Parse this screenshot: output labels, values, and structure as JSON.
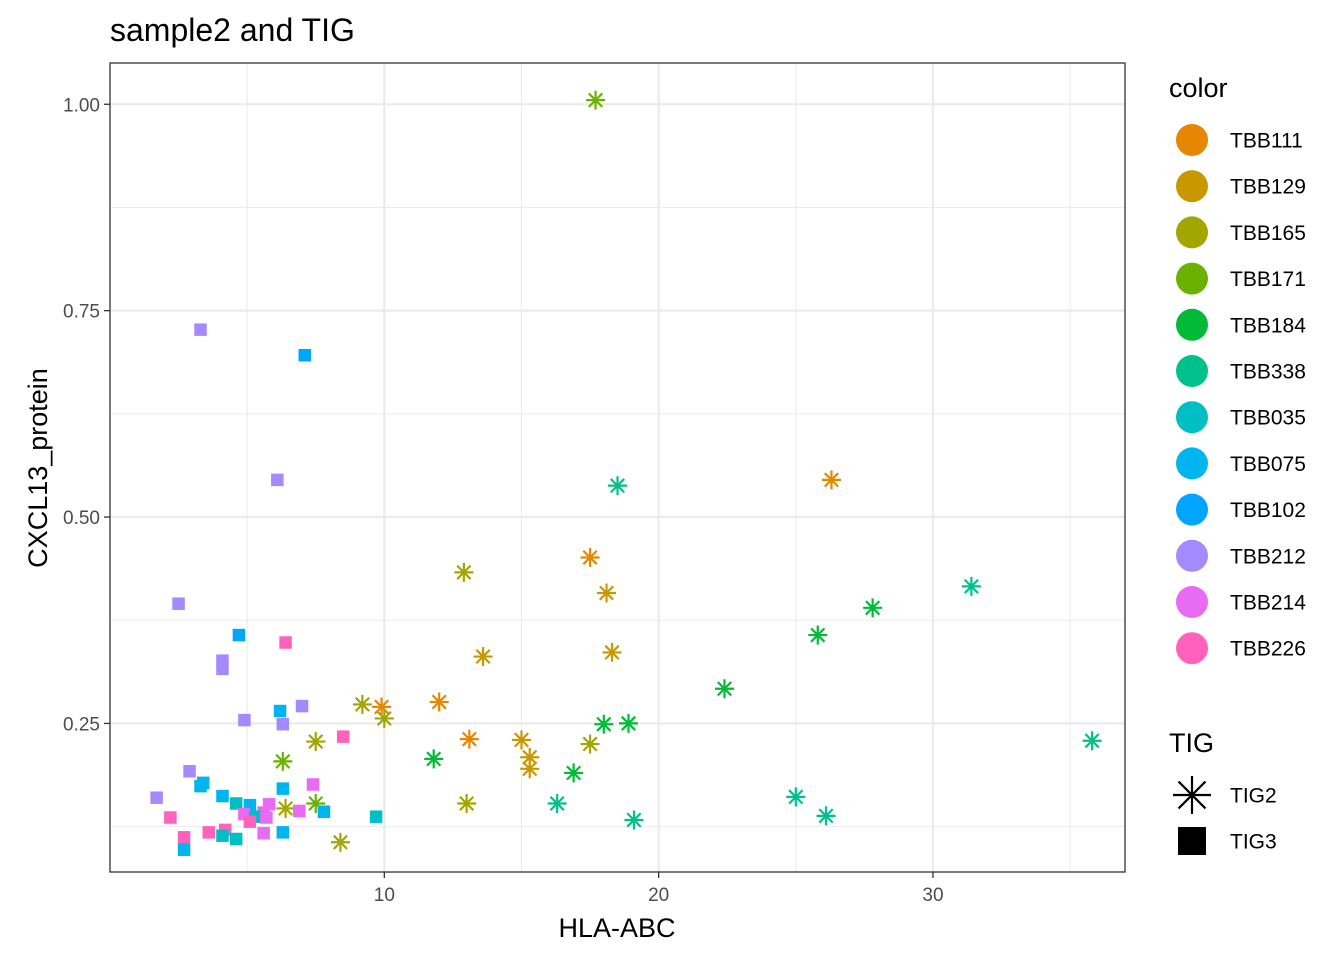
{
  "chart_data": {
    "type": "scatter",
    "title": "sample2 and TIG",
    "xlabel": "HLA-ABC",
    "ylabel": "CXCL13_protein",
    "xlim": [
      0,
      37
    ],
    "ylim": [
      0.07,
      1.05
    ],
    "x_ticks": [
      10,
      20,
      30
    ],
    "y_ticks": [
      0.25,
      0.5,
      0.75,
      1.0
    ],
    "x_tick_labels": [
      "10",
      "20",
      "30"
    ],
    "y_tick_labels": [
      "0.25",
      "0.50",
      "0.75",
      "1.00"
    ],
    "grid": true,
    "legend_position": "right",
    "color_legend": {
      "title": "color",
      "entries": [
        {
          "label": "TBB111",
          "color": "#E58700"
        },
        {
          "label": "TBB129",
          "color": "#C99800"
        },
        {
          "label": "TBB165",
          "color": "#A3A500"
        },
        {
          "label": "TBB171",
          "color": "#6BB100"
        },
        {
          "label": "TBB184",
          "color": "#00BA38"
        },
        {
          "label": "TBB338",
          "color": "#00C08B"
        },
        {
          "label": "TBB035",
          "color": "#00BFC4"
        },
        {
          "label": "TBB075",
          "color": "#00B4F0"
        },
        {
          "label": "TBB102",
          "color": "#00A5FF"
        },
        {
          "label": "TBB212",
          "color": "#A58AFF"
        },
        {
          "label": "TBB214",
          "color": "#E76BF3"
        },
        {
          "label": "TBB226",
          "color": "#FF62BC"
        }
      ]
    },
    "shape_legend": {
      "title": "TIG",
      "entries": [
        {
          "label": "TIG2",
          "shape": "asterisk"
        },
        {
          "label": "TIG3",
          "shape": "square"
        }
      ]
    },
    "points": [
      {
        "x": 17.7,
        "y": 1.005,
        "group": "TBB171",
        "shape": "asterisk"
      },
      {
        "x": 26.3,
        "y": 0.545,
        "group": "TBB111",
        "shape": "asterisk"
      },
      {
        "x": 18.5,
        "y": 0.538,
        "group": "TBB338",
        "shape": "asterisk"
      },
      {
        "x": 17.5,
        "y": 0.451,
        "group": "TBB111",
        "shape": "asterisk"
      },
      {
        "x": 12.9,
        "y": 0.433,
        "group": "TBB165",
        "shape": "asterisk"
      },
      {
        "x": 31.4,
        "y": 0.416,
        "group": "TBB338",
        "shape": "asterisk"
      },
      {
        "x": 18.1,
        "y": 0.408,
        "group": "TBB129",
        "shape": "asterisk"
      },
      {
        "x": 27.8,
        "y": 0.39,
        "group": "TBB184",
        "shape": "asterisk"
      },
      {
        "x": 25.8,
        "y": 0.357,
        "group": "TBB184",
        "shape": "asterisk"
      },
      {
        "x": 18.3,
        "y": 0.336,
        "group": "TBB129",
        "shape": "asterisk"
      },
      {
        "x": 13.6,
        "y": 0.331,
        "group": "TBB129",
        "shape": "asterisk"
      },
      {
        "x": 22.4,
        "y": 0.292,
        "group": "TBB184",
        "shape": "asterisk"
      },
      {
        "x": 12.0,
        "y": 0.276,
        "group": "TBB111",
        "shape": "asterisk"
      },
      {
        "x": 9.2,
        "y": 0.273,
        "group": "TBB165",
        "shape": "asterisk"
      },
      {
        "x": 9.9,
        "y": 0.27,
        "group": "TBB111",
        "shape": "asterisk"
      },
      {
        "x": 10.0,
        "y": 0.256,
        "group": "TBB165",
        "shape": "asterisk"
      },
      {
        "x": 18.9,
        "y": 0.25,
        "group": "TBB184",
        "shape": "asterisk"
      },
      {
        "x": 18.0,
        "y": 0.249,
        "group": "TBB184",
        "shape": "asterisk"
      },
      {
        "x": 13.1,
        "y": 0.231,
        "group": "TBB111",
        "shape": "asterisk"
      },
      {
        "x": 15.0,
        "y": 0.23,
        "group": "TBB129",
        "shape": "asterisk"
      },
      {
        "x": 35.8,
        "y": 0.229,
        "group": "TBB338",
        "shape": "asterisk"
      },
      {
        "x": 7.5,
        "y": 0.228,
        "group": "TBB165",
        "shape": "asterisk"
      },
      {
        "x": 17.5,
        "y": 0.225,
        "group": "TBB165",
        "shape": "asterisk"
      },
      {
        "x": 15.3,
        "y": 0.209,
        "group": "TBB129",
        "shape": "asterisk"
      },
      {
        "x": 11.8,
        "y": 0.207,
        "group": "TBB184",
        "shape": "asterisk"
      },
      {
        "x": 6.3,
        "y": 0.204,
        "group": "TBB171",
        "shape": "asterisk"
      },
      {
        "x": 15.3,
        "y": 0.195,
        "group": "TBB129",
        "shape": "asterisk"
      },
      {
        "x": 16.9,
        "y": 0.19,
        "group": "TBB184",
        "shape": "asterisk"
      },
      {
        "x": 25.0,
        "y": 0.161,
        "group": "TBB338",
        "shape": "asterisk"
      },
      {
        "x": 16.3,
        "y": 0.153,
        "group": "TBB338",
        "shape": "asterisk"
      },
      {
        "x": 13.0,
        "y": 0.153,
        "group": "TBB165",
        "shape": "asterisk"
      },
      {
        "x": 7.5,
        "y": 0.153,
        "group": "TBB171",
        "shape": "asterisk"
      },
      {
        "x": 6.4,
        "y": 0.147,
        "group": "TBB165",
        "shape": "asterisk"
      },
      {
        "x": 26.1,
        "y": 0.138,
        "group": "TBB338",
        "shape": "asterisk"
      },
      {
        "x": 19.1,
        "y": 0.133,
        "group": "TBB338",
        "shape": "asterisk"
      },
      {
        "x": 8.4,
        "y": 0.106,
        "group": "TBB165",
        "shape": "asterisk"
      },
      {
        "x": 3.3,
        "y": 0.727,
        "group": "TBB212",
        "shape": "square"
      },
      {
        "x": 7.1,
        "y": 0.696,
        "group": "TBB102",
        "shape": "square"
      },
      {
        "x": 6.1,
        "y": 0.545,
        "group": "TBB212",
        "shape": "square"
      },
      {
        "x": 2.5,
        "y": 0.395,
        "group": "TBB212",
        "shape": "square"
      },
      {
        "x": 4.7,
        "y": 0.357,
        "group": "TBB102",
        "shape": "square"
      },
      {
        "x": 6.4,
        "y": 0.348,
        "group": "TBB226",
        "shape": "square"
      },
      {
        "x": 4.1,
        "y": 0.326,
        "group": "TBB212",
        "shape": "square"
      },
      {
        "x": 4.1,
        "y": 0.316,
        "group": "TBB212",
        "shape": "square"
      },
      {
        "x": 7.0,
        "y": 0.271,
        "group": "TBB212",
        "shape": "square"
      },
      {
        "x": 6.2,
        "y": 0.265,
        "group": "TBB075",
        "shape": "square"
      },
      {
        "x": 4.9,
        "y": 0.254,
        "group": "TBB212",
        "shape": "square"
      },
      {
        "x": 6.3,
        "y": 0.249,
        "group": "TBB212",
        "shape": "square"
      },
      {
        "x": 8.5,
        "y": 0.234,
        "group": "TBB226",
        "shape": "square"
      },
      {
        "x": 2.9,
        "y": 0.192,
        "group": "TBB212",
        "shape": "square"
      },
      {
        "x": 3.4,
        "y": 0.178,
        "group": "TBB075",
        "shape": "square"
      },
      {
        "x": 7.4,
        "y": 0.176,
        "group": "TBB214",
        "shape": "square"
      },
      {
        "x": 3.3,
        "y": 0.174,
        "group": "TBB075",
        "shape": "square"
      },
      {
        "x": 6.3,
        "y": 0.171,
        "group": "TBB075",
        "shape": "square"
      },
      {
        "x": 1.7,
        "y": 0.16,
        "group": "TBB212",
        "shape": "square"
      },
      {
        "x": 4.1,
        "y": 0.162,
        "group": "TBB075",
        "shape": "square"
      },
      {
        "x": 4.6,
        "y": 0.153,
        "group": "TBB035",
        "shape": "square"
      },
      {
        "x": 5.1,
        "y": 0.151,
        "group": "TBB075",
        "shape": "square"
      },
      {
        "x": 5.8,
        "y": 0.152,
        "group": "TBB214",
        "shape": "square"
      },
      {
        "x": 7.8,
        "y": 0.143,
        "group": "TBB075",
        "shape": "square"
      },
      {
        "x": 6.9,
        "y": 0.144,
        "group": "TBB214",
        "shape": "square"
      },
      {
        "x": 4.9,
        "y": 0.14,
        "group": "TBB214",
        "shape": "square"
      },
      {
        "x": 5.6,
        "y": 0.142,
        "group": "TBB214",
        "shape": "square"
      },
      {
        "x": 5.3,
        "y": 0.137,
        "group": "TBB035",
        "shape": "square"
      },
      {
        "x": 9.7,
        "y": 0.137,
        "group": "TBB035",
        "shape": "square"
      },
      {
        "x": 5.7,
        "y": 0.136,
        "group": "TBB214",
        "shape": "square"
      },
      {
        "x": 2.2,
        "y": 0.136,
        "group": "TBB226",
        "shape": "square"
      },
      {
        "x": 5.1,
        "y": 0.131,
        "group": "TBB226",
        "shape": "square"
      },
      {
        "x": 4.2,
        "y": 0.121,
        "group": "TBB226",
        "shape": "square"
      },
      {
        "x": 3.6,
        "y": 0.118,
        "group": "TBB226",
        "shape": "square"
      },
      {
        "x": 6.3,
        "y": 0.118,
        "group": "TBB075",
        "shape": "square"
      },
      {
        "x": 5.6,
        "y": 0.117,
        "group": "TBB214",
        "shape": "square"
      },
      {
        "x": 4.1,
        "y": 0.114,
        "group": "TBB035",
        "shape": "square"
      },
      {
        "x": 4.6,
        "y": 0.11,
        "group": "TBB035",
        "shape": "square"
      },
      {
        "x": 2.7,
        "y": 0.112,
        "group": "TBB226",
        "shape": "square"
      },
      {
        "x": 2.7,
        "y": 0.097,
        "group": "TBB075",
        "shape": "square"
      }
    ]
  }
}
